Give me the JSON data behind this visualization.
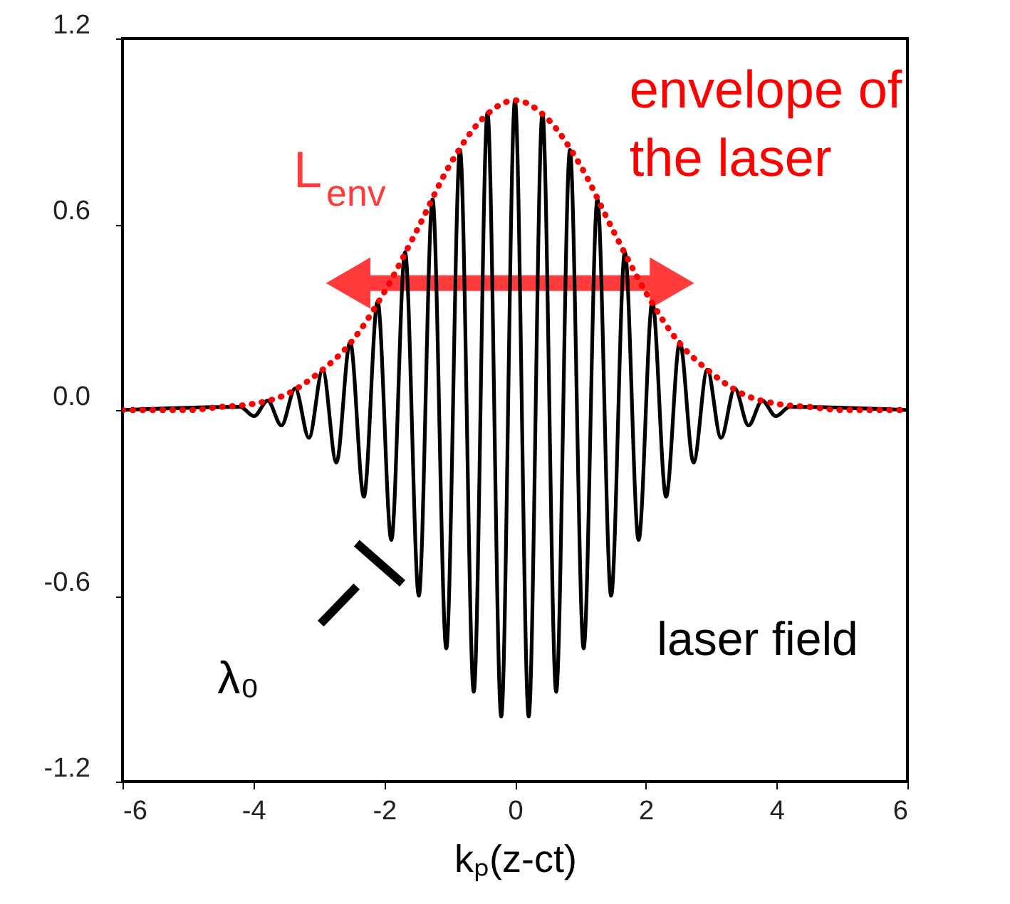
{
  "chart_data": {
    "type": "line",
    "xlabel": "kₚ(z-ct)",
    "xlim": [
      -6,
      6
    ],
    "xticks": [
      -6,
      -4,
      -2,
      0,
      2,
      4,
      6
    ],
    "ylim": [
      -1.2,
      1.2
    ],
    "yticks": [
      -1.2,
      -0.6,
      {
        "value": 0,
        "label": "0.0"
      },
      0.6,
      1.2
    ],
    "grid": false,
    "marker": "none",
    "series": [
      {
        "color": "#000000",
        "line_style": "solid",
        "x": [
          -6,
          -4.2,
          -3.99,
          -3.78,
          -3.57,
          -3.36,
          -3.15,
          -2.94,
          -2.73,
          -2.52,
          -2.31,
          -2.1,
          -1.89,
          -1.68,
          -1.47,
          -1.26,
          -1.05,
          -0.84,
          -0.63,
          -0.42,
          -0.21,
          0,
          0.21,
          0.42,
          0.63,
          0.84,
          1.05,
          1.26,
          1.47,
          1.68,
          1.89,
          2.1,
          2.31,
          2.52,
          2.73,
          2.94,
          3.15,
          3.36,
          3.57,
          3.78,
          3.99,
          4.2,
          6
        ],
        "values": [
          0,
          0.01,
          -0.02,
          0.03,
          -0.05,
          0.07,
          -0.09,
          0.13,
          -0.17,
          0.22,
          -0.28,
          0.35,
          -0.42,
          0.51,
          -0.6,
          0.68,
          -0.77,
          0.84,
          -0.91,
          0.96,
          -0.99,
          1.0,
          -0.99,
          0.96,
          -0.91,
          0.84,
          -0.77,
          0.68,
          -0.6,
          0.51,
          -0.42,
          0.35,
          -0.28,
          0.22,
          -0.17,
          0.13,
          -0.09,
          0.07,
          -0.05,
          0.03,
          -0.02,
          0.01,
          0
        ]
      },
      {
        "color": "#ff0000",
        "line_style": "dotted",
        "x": [
          -6,
          -5,
          -4.5,
          -4,
          -3.5,
          -3,
          -2.5,
          -2,
          -1.5,
          -1,
          -0.5,
          0,
          0.5,
          1,
          1.5,
          2,
          2.5,
          3,
          3.5,
          4,
          4.5,
          5,
          6
        ],
        "values": [
          0,
          0,
          0.01,
          0.02,
          0.05,
          0.12,
          0.22,
          0.38,
          0.58,
          0.79,
          0.94,
          1.0,
          0.94,
          0.79,
          0.58,
          0.38,
          0.22,
          0.12,
          0.05,
          0.02,
          0.01,
          0,
          0
        ]
      }
    ],
    "annotations": [
      "L$_{env}$",
      "envelope of\nthe laser",
      "λ₀",
      "laser field"
    ]
  }
}
